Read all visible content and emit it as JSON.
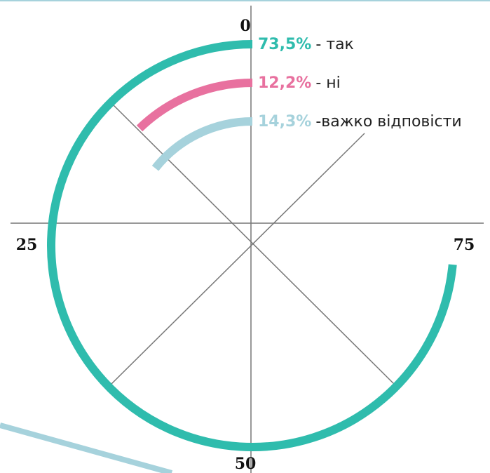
{
  "chart_data": {
    "type": "radialbar",
    "series": [
      {
        "name": "- так",
        "color": "#2fbcad",
        "values": [
          73.5
        ],
        "value_labels": [
          "73,5%"
        ]
      },
      {
        "name": "- ні",
        "color": "#e8719f",
        "values": [
          12.2
        ],
        "value_labels": [
          "12,2%"
        ]
      },
      {
        "name": "-важко відповісти",
        "color": "#a6d2dc",
        "values": [
          14.3
        ],
        "value_labels": [
          "14,3%"
        ]
      }
    ],
    "ylim": [
      0,
      100
    ],
    "yticks": [
      0,
      25,
      50,
      75
    ]
  }
}
